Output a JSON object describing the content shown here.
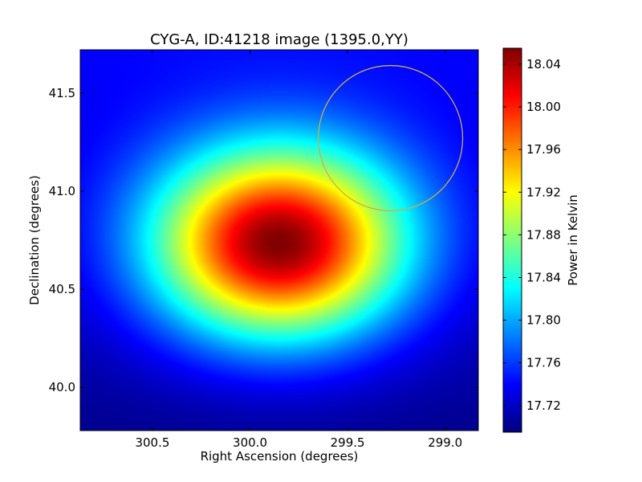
{
  "chart_data": {
    "type": "heatmap",
    "title": "CYG-A, ID:41218 image (1395.0,YY)",
    "xlabel": "Right Ascension (degrees)",
    "ylabel": "Declination (degrees)",
    "x_inverted": true,
    "xlim": [
      300.87,
      298.83
    ],
    "ylim": [
      39.78,
      41.72
    ],
    "x_ticks": [
      300.5,
      300.0,
      299.5,
      299.0
    ],
    "x_tick_labels": [
      "300.5",
      "300.0",
      "299.5",
      "299.0"
    ],
    "y_ticks": [
      40.0,
      40.5,
      41.0,
      41.5
    ],
    "y_tick_labels": [
      "40.0",
      "40.5",
      "41.0",
      "41.5"
    ],
    "colormap": "jet",
    "field": {
      "peak_ra": 299.85,
      "peak_dec": 40.73,
      "peak_value": 18.055,
      "background_value": 17.7,
      "sigma_ra": 0.45,
      "sigma_dec": 0.34,
      "background_gradient_dec": 0.04
    },
    "annotations": [
      {
        "type": "circle",
        "center_ra": 299.28,
        "center_dec": 41.27,
        "radius_deg": 0.37,
        "color": "#c8b04a"
      }
    ],
    "colorbar": {
      "label": "Power in Kelvin",
      "vmin": 17.695,
      "vmax": 18.055,
      "ticks": [
        17.72,
        17.76,
        17.8,
        17.84,
        17.88,
        17.92,
        17.96,
        18.0,
        18.04
      ],
      "tick_labels": [
        "17.72",
        "17.76",
        "17.80",
        "17.84",
        "17.88",
        "17.92",
        "17.96",
        "18.00",
        "18.04"
      ]
    }
  }
}
